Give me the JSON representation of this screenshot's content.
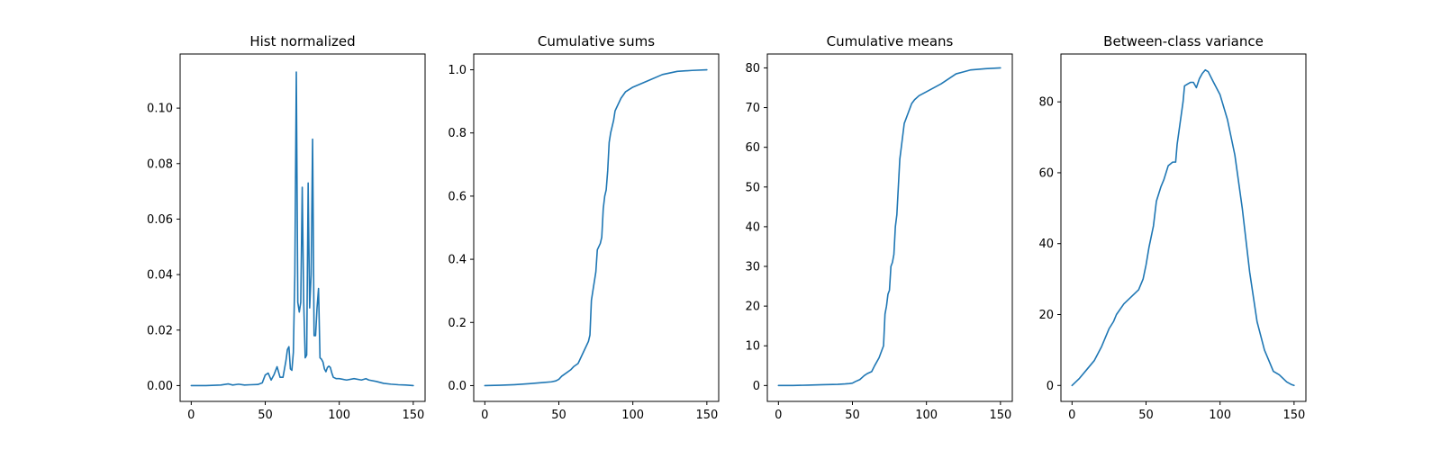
{
  "chart_data": [
    {
      "type": "line",
      "title": "Hist normalized",
      "xlabel": "",
      "ylabel": "",
      "xlim": [
        -7.5,
        158
      ],
      "ylim": [
        -0.0057,
        0.1195
      ],
      "xticks": [
        0,
        50,
        100,
        150
      ],
      "xtick_labels": [
        "0",
        "50",
        "100",
        "150"
      ],
      "yticks": [
        0.0,
        0.02,
        0.04,
        0.06,
        0.08,
        0.1
      ],
      "ytick_labels": [
        "0.00",
        "0.02",
        "0.04",
        "0.06",
        "0.08",
        "0.10"
      ],
      "grid": false,
      "series": [
        {
          "color": "#1f77b4",
          "x": [
            0,
            10,
            20,
            25,
            28,
            32,
            36,
            40,
            45,
            48,
            50,
            52,
            54,
            56,
            58,
            60,
            62,
            64,
            65,
            66,
            67,
            68,
            69,
            70,
            71,
            72,
            73,
            74,
            75,
            76,
            77,
            78,
            79,
            80,
            81,
            82,
            83,
            84,
            85,
            86,
            87,
            88,
            89,
            90,
            91,
            92,
            93,
            94,
            95,
            96,
            98,
            100,
            105,
            110,
            115,
            118,
            120,
            125,
            130,
            135,
            140,
            145,
            150
          ],
          "y": [
            0.0,
            0.0,
            0.0002,
            0.0006,
            0.0002,
            0.0005,
            0.0002,
            0.0003,
            0.0004,
            0.001,
            0.0038,
            0.0045,
            0.002,
            0.004,
            0.0068,
            0.003,
            0.003,
            0.009,
            0.013,
            0.014,
            0.006,
            0.0055,
            0.012,
            0.04,
            0.113,
            0.03,
            0.0265,
            0.03,
            0.0715,
            0.03,
            0.01,
            0.011,
            0.073,
            0.028,
            0.04,
            0.0888,
            0.018,
            0.018,
            0.028,
            0.035,
            0.01,
            0.0095,
            0.0085,
            0.006,
            0.005,
            0.0065,
            0.007,
            0.0065,
            0.0045,
            0.003,
            0.0025,
            0.0025,
            0.002,
            0.0025,
            0.002,
            0.0025,
            0.002,
            0.0015,
            0.0008,
            0.0005,
            0.0003,
            0.0002,
            0.0
          ]
        }
      ]
    },
    {
      "type": "line",
      "title": "Cumulative sums",
      "xlabel": "",
      "ylabel": "",
      "xlim": [
        -7.5,
        158
      ],
      "ylim": [
        -0.05,
        1.05
      ],
      "xticks": [
        0,
        50,
        100,
        150
      ],
      "xtick_labels": [
        "0",
        "50",
        "100",
        "150"
      ],
      "yticks": [
        0.0,
        0.2,
        0.4,
        0.6,
        0.8,
        1.0
      ],
      "ytick_labels": [
        "0.0",
        "0.2",
        "0.4",
        "0.6",
        "0.8",
        "1.0"
      ],
      "grid": false,
      "series": [
        {
          "color": "#1f77b4",
          "x": [
            0,
            10,
            20,
            30,
            40,
            45,
            48,
            50,
            52,
            55,
            58,
            60,
            63,
            65,
            68,
            70,
            71,
            72,
            73,
            74,
            75,
            76,
            77,
            78,
            79,
            80,
            81,
            82,
            83,
            84,
            85,
            86,
            87,
            88,
            89,
            90,
            91,
            92,
            95,
            100,
            110,
            120,
            125,
            130,
            140,
            150
          ],
          "y": [
            0.0,
            0.001,
            0.003,
            0.006,
            0.01,
            0.012,
            0.015,
            0.02,
            0.03,
            0.04,
            0.05,
            0.06,
            0.07,
            0.09,
            0.12,
            0.14,
            0.16,
            0.27,
            0.3,
            0.33,
            0.36,
            0.43,
            0.44,
            0.45,
            0.47,
            0.56,
            0.6,
            0.62,
            0.68,
            0.77,
            0.8,
            0.82,
            0.84,
            0.87,
            0.88,
            0.89,
            0.9,
            0.91,
            0.93,
            0.945,
            0.965,
            0.985,
            0.99,
            0.995,
            0.998,
            1.0
          ]
        }
      ]
    },
    {
      "type": "line",
      "title": "Cumulative means",
      "xlabel": "",
      "ylabel": "",
      "xlim": [
        -7.5,
        158
      ],
      "ylim": [
        -4,
        83.5
      ],
      "xticks": [
        0,
        50,
        100,
        150
      ],
      "xtick_labels": [
        "0",
        "50",
        "100",
        "150"
      ],
      "yticks": [
        0,
        10,
        20,
        30,
        40,
        50,
        60,
        70,
        80
      ],
      "ytick_labels": [
        "0",
        "10",
        "20",
        "30",
        "40",
        "50",
        "60",
        "70",
        "80"
      ],
      "grid": false,
      "series": [
        {
          "color": "#1f77b4",
          "x": [
            0,
            10,
            20,
            30,
            40,
            45,
            48,
            50,
            52,
            55,
            58,
            60,
            63,
            65,
            68,
            70,
            71,
            72,
            73,
            74,
            75,
            76,
            77,
            78,
            79,
            80,
            81,
            82,
            83,
            84,
            85,
            86,
            87,
            88,
            89,
            90,
            92,
            95,
            100,
            110,
            120,
            125,
            130,
            140,
            150
          ],
          "y": [
            0.0,
            0.0,
            0.1,
            0.2,
            0.3,
            0.4,
            0.5,
            0.6,
            1.0,
            1.5,
            2.5,
            3.0,
            3.5,
            5.0,
            7.0,
            9.0,
            10.0,
            18.0,
            20.0,
            23.0,
            24.0,
            30.0,
            31.0,
            33.0,
            40.0,
            43.0,
            50.0,
            57.0,
            60.0,
            63.0,
            66.0,
            67.0,
            68.0,
            69.0,
            70.0,
            71.0,
            72.0,
            73.0,
            74.0,
            76.0,
            78.5,
            79.0,
            79.5,
            79.8,
            80.0
          ]
        }
      ]
    },
    {
      "type": "line",
      "title": "Between-class variance",
      "xlabel": "",
      "ylabel": "",
      "xlim": [
        -7.5,
        158
      ],
      "ylim": [
        -4.5,
        93.5
      ],
      "xticks": [
        0,
        50,
        100,
        150
      ],
      "xtick_labels": [
        "0",
        "50",
        "100",
        "150"
      ],
      "yticks": [
        0,
        20,
        40,
        60,
        80
      ],
      "ytick_labels": [
        "0",
        "20",
        "40",
        "60",
        "80"
      ],
      "grid": false,
      "series": [
        {
          "color": "#1f77b4",
          "x": [
            0,
            5,
            10,
            15,
            20,
            25,
            28,
            30,
            35,
            40,
            45,
            48,
            50,
            52,
            55,
            57,
            60,
            62,
            65,
            68,
            70,
            71,
            72,
            73,
            75,
            76,
            78,
            80,
            82,
            84,
            86,
            88,
            90,
            92,
            95,
            100,
            105,
            110,
            115,
            120,
            125,
            130,
            133,
            136,
            140,
            145,
            148,
            150
          ],
          "y": [
            0.0,
            2.0,
            4.5,
            7.0,
            11.0,
            16.0,
            18.0,
            20.0,
            23.0,
            25.0,
            27.0,
            30.0,
            34.0,
            39.0,
            45.0,
            52.0,
            56.0,
            58.0,
            62.0,
            63.0,
            63.0,
            68.0,
            71.0,
            74.0,
            80.0,
            84.5,
            85.0,
            85.5,
            85.5,
            84.0,
            86.5,
            88.0,
            89.0,
            88.5,
            86.0,
            82.0,
            75.0,
            65.0,
            50.0,
            32.0,
            18.0,
            10.0,
            7.0,
            4.0,
            3.0,
            1.0,
            0.3,
            0.0
          ]
        }
      ]
    }
  ]
}
